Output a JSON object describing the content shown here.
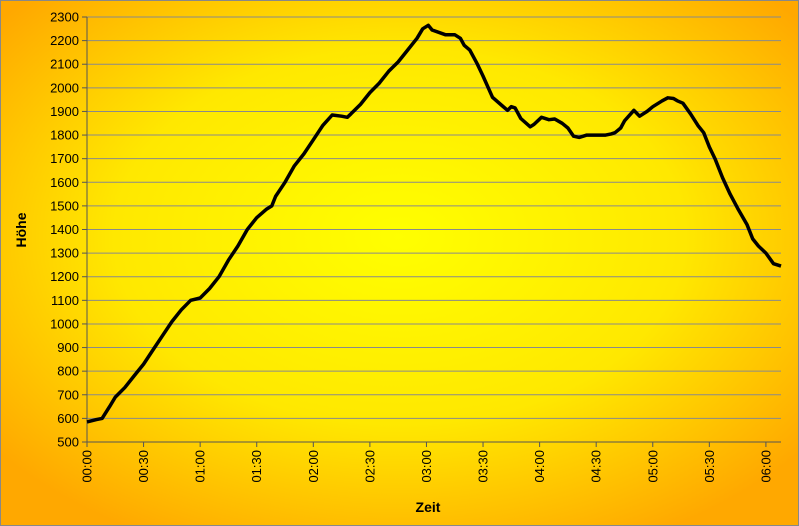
{
  "chart_data": {
    "type": "line",
    "x_label": "Zeit",
    "y_label": "Höhe",
    "x": [
      0,
      5,
      8,
      12,
      15,
      20,
      25,
      30,
      35,
      40,
      45,
      50,
      55,
      60,
      65,
      70,
      75,
      80,
      85,
      90,
      95,
      98,
      100,
      105,
      110,
      115,
      120,
      125,
      130,
      135,
      138,
      140,
      145,
      150,
      155,
      160,
      165,
      170,
      175,
      178,
      181,
      183,
      190,
      195,
      198,
      200,
      203,
      207,
      210,
      215,
      220,
      223,
      225,
      227,
      230,
      235,
      237,
      241,
      245,
      248,
      252,
      255,
      258,
      261,
      265,
      270,
      275,
      278,
      280,
      283,
      285,
      290,
      293,
      297,
      300,
      305,
      308,
      311,
      313,
      316,
      320,
      324,
      327,
      330,
      333,
      337,
      341,
      345,
      350,
      353,
      356,
      360,
      364,
      368
    ],
    "series": [
      {
        "name": "Höhe",
        "color": "#000000",
        "values": [
          585,
          595,
          600,
          650,
          690,
          730,
          780,
          830,
          890,
          950,
          1010,
          1060,
          1100,
          1110,
          1150,
          1200,
          1270,
          1330,
          1400,
          1450,
          1485,
          1500,
          1540,
          1600,
          1670,
          1720,
          1780,
          1840,
          1885,
          1880,
          1875,
          1890,
          1930,
          1980,
          2020,
          2070,
          2110,
          2160,
          2210,
          2250,
          2265,
          2245,
          2225,
          2225,
          2210,
          2180,
          2160,
          2100,
          2050,
          1960,
          1925,
          1905,
          1920,
          1915,
          1870,
          1835,
          1845,
          1875,
          1865,
          1868,
          1850,
          1830,
          1795,
          1790,
          1800,
          1800,
          1800,
          1805,
          1810,
          1830,
          1860,
          1905,
          1880,
          1900,
          1920,
          1945,
          1958,
          1955,
          1945,
          1935,
          1890,
          1840,
          1810,
          1750,
          1700,
          1620,
          1550,
          1490,
          1420,
          1360,
          1330,
          1300,
          1255,
          1245
        ]
      }
    ],
    "xlim": [
      0,
      368
    ],
    "xticks": [
      {
        "value": 0,
        "label": "00:00"
      },
      {
        "value": 30,
        "label": "00:30"
      },
      {
        "value": 60,
        "label": "01:00"
      },
      {
        "value": 90,
        "label": "01:30"
      },
      {
        "value": 120,
        "label": "02:00"
      },
      {
        "value": 150,
        "label": "02:30"
      },
      {
        "value": 180,
        "label": "03:00"
      },
      {
        "value": 210,
        "label": "03:30"
      },
      {
        "value": 240,
        "label": "04:00"
      },
      {
        "value": 270,
        "label": "04:30"
      },
      {
        "value": 300,
        "label": "05:00"
      },
      {
        "value": 330,
        "label": "05:30"
      },
      {
        "value": 360,
        "label": "06:00"
      }
    ],
    "ylim": [
      500,
      2300
    ],
    "yticks": [
      500,
      600,
      700,
      800,
      900,
      1000,
      1100,
      1200,
      1300,
      1400,
      1500,
      1600,
      1700,
      1800,
      1900,
      2000,
      2100,
      2200,
      2300
    ],
    "grid": true
  }
}
